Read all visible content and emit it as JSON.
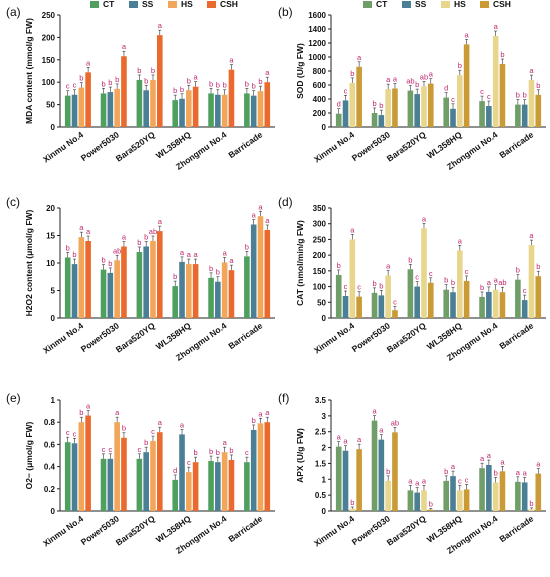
{
  "figure": {
    "groups": [
      "Xinmu No.4",
      "Power5030",
      "Bara520YQ",
      "WL358HQ",
      "Zhongmu No.4",
      "Barricade"
    ],
    "treatments": [
      "CT",
      "SS",
      "HS",
      "CSH"
    ]
  },
  "chart_data": [
    {
      "type": "bar",
      "panel": "(a)",
      "title": "",
      "legend": [
        "CT",
        "SS",
        "HS",
        "CSH"
      ],
      "legend_position": "top",
      "colors": [
        "#4fa05e",
        "#4a7f96",
        "#f2a65a",
        "#ea6a2e"
      ],
      "ylabel": "MDA content (mmol/g FW)",
      "ylim": [
        0,
        250
      ],
      "yticks": [
        0,
        50,
        100,
        150,
        200,
        250
      ],
      "categories": [
        "Xinmu No.4",
        "Power5030",
        "Bara520YQ",
        "WL358HQ",
        "Zhongmu No.4",
        "Barricade"
      ],
      "series": [
        {
          "name": "CT",
          "values": [
            70,
            75,
            105,
            60,
            75,
            75
          ],
          "letters": [
            "c",
            "b",
            "b",
            "b",
            "b",
            "b"
          ]
        },
        {
          "name": "SS",
          "values": [
            72,
            78,
            82,
            63,
            72,
            70
          ],
          "letters": [
            "c",
            "b",
            "b",
            "b",
            "b",
            "b"
          ]
        },
        {
          "name": "HS",
          "values": [
            88,
            85,
            105,
            82,
            72,
            80
          ],
          "letters": [
            "b",
            "b",
            "b",
            "b",
            "b",
            "b"
          ]
        },
        {
          "name": "CSH",
          "values": [
            122,
            158,
            205,
            90,
            128,
            100
          ],
          "letters": [
            "a",
            "a",
            "a",
            "a",
            "a",
            "a"
          ]
        }
      ]
    },
    {
      "type": "bar",
      "panel": "(b)",
      "title": "",
      "legend": [
        "CT",
        "SS",
        "HS",
        "CSH"
      ],
      "legend_position": "top",
      "colors": [
        "#6f9e68",
        "#4a7f96",
        "#e8d68c",
        "#c99a36"
      ],
      "ylabel": "SOD (U/g FW)",
      "ylim": [
        0,
        1600
      ],
      "yticks": [
        0,
        200,
        400,
        600,
        800,
        1000,
        1200,
        1400,
        1600
      ],
      "categories": [
        "Xinmu No.4",
        "Power5030",
        "Bara520YQ",
        "WL358HQ",
        "Zhongmu No.4",
        "Barricade"
      ],
      "series": [
        {
          "name": "CT",
          "values": [
            190,
            200,
            520,
            420,
            370,
            320
          ],
          "letters": [
            "d",
            "b",
            "ab",
            "d",
            "c",
            "b"
          ]
        },
        {
          "name": "SS",
          "values": [
            380,
            170,
            470,
            260,
            300,
            320
          ],
          "letters": [
            "c",
            "b",
            "b",
            "c",
            "c",
            "b"
          ]
        },
        {
          "name": "HS",
          "values": [
            630,
            540,
            580,
            740,
            1300,
            670
          ],
          "letters": [
            "b",
            "a",
            "ab",
            "b",
            "a",
            "a"
          ]
        },
        {
          "name": "CSH",
          "values": [
            860,
            550,
            620,
            1180,
            900,
            460
          ],
          "letters": [
            "a",
            "a",
            "a",
            "a",
            "b",
            "b"
          ]
        }
      ]
    },
    {
      "type": "bar",
      "panel": "(c)",
      "title": "",
      "colors": [
        "#4fa05e",
        "#4a7f96",
        "#f2a65a",
        "#ea6a2e"
      ],
      "ylabel": "H2O2 content (μmol/g FW)",
      "ylim": [
        0,
        20
      ],
      "yticks": [
        0,
        5,
        10,
        15,
        20
      ],
      "categories": [
        "Xinmu No.4",
        "Power5030",
        "Bara520YQ",
        "WL358HQ",
        "Zhongmu No.4",
        "Barricade"
      ],
      "series": [
        {
          "name": "CT",
          "values": [
            11,
            8.8,
            12,
            5.8,
            7.3,
            11.2
          ],
          "letters": [
            "b",
            "b",
            "b",
            "b",
            "b",
            "b"
          ]
        },
        {
          "name": "SS",
          "values": [
            9.8,
            8.2,
            13,
            10.2,
            6.6,
            17
          ],
          "letters": [
            "b",
            "b",
            "b",
            "a",
            "b",
            "a"
          ]
        },
        {
          "name": "HS",
          "values": [
            14.7,
            10.5,
            14,
            9.8,
            10.1,
            18.5
          ],
          "letters": [
            "a",
            "ab",
            "ab",
            "a",
            "a",
            "a"
          ]
        },
        {
          "name": "CSH",
          "values": [
            14,
            13,
            15.8,
            9.8,
            8.7,
            16
          ],
          "letters": [
            "a",
            "a",
            "a",
            "a",
            "a",
            "a"
          ]
        }
      ]
    },
    {
      "type": "bar",
      "panel": "(d)",
      "title": "",
      "colors": [
        "#6f9e68",
        "#4a7f96",
        "#e8d68c",
        "#c99a36"
      ],
      "ylabel": "CAT (nmol/min/g FW)",
      "ylim": [
        0,
        350
      ],
      "yticks": [
        0,
        50,
        100,
        150,
        200,
        250,
        300,
        350
      ],
      "categories": [
        "Xinmu No.4",
        "Power5030",
        "Bara520YQ",
        "WL358HQ",
        "Zhongmu No.4",
        "Barricade"
      ],
      "series": [
        {
          "name": "CT",
          "values": [
            137,
            80,
            155,
            90,
            67,
            122
          ],
          "letters": [
            "b",
            "b",
            "b",
            "b",
            "b",
            "b"
          ]
        },
        {
          "name": "SS",
          "values": [
            70,
            72,
            100,
            82,
            83,
            57
          ],
          "letters": [
            "c",
            "b",
            "c",
            "b",
            "a",
            "c"
          ]
        },
        {
          "name": "HS",
          "values": [
            250,
            135,
            285,
            215,
            90,
            232
          ],
          "letters": [
            "a",
            "a",
            "a",
            "a",
            "a",
            "a"
          ]
        },
        {
          "name": "CSH",
          "values": [
            68,
            25,
            112,
            118,
            82,
            133
          ],
          "letters": [
            "c",
            "c",
            "c",
            "c",
            "ab",
            "b"
          ]
        }
      ]
    },
    {
      "type": "bar",
      "panel": "(e)",
      "title": "",
      "colors": [
        "#4fa05e",
        "#4a7f96",
        "#f2a65a",
        "#ea6a2e"
      ],
      "ylabel": "O2− (μmol/g FW)",
      "ylim": [
        0,
        1.0
      ],
      "yticks": [
        0,
        0.2,
        0.4,
        0.6,
        0.8,
        1.0
      ],
      "categories": [
        "Xinmu No.4",
        "Power5030",
        "Bara520YQ",
        "WL358HQ",
        "Zhongmu No.4",
        "Barricade"
      ],
      "series": [
        {
          "name": "CT",
          "values": [
            0.62,
            0.47,
            0.47,
            0.28,
            0.45,
            0.44
          ],
          "letters": [
            "c",
            "c",
            "c",
            "d",
            "b",
            "c"
          ]
        },
        {
          "name": "SS",
          "values": [
            0.61,
            0.47,
            0.53,
            0.69,
            0.44,
            0.73
          ],
          "letters": [
            "c",
            "c",
            "b",
            "a",
            "b",
            "b"
          ]
        },
        {
          "name": "HS",
          "values": [
            0.8,
            0.8,
            0.63,
            0.35,
            0.53,
            0.79
          ],
          "letters": [
            "b",
            "a",
            "c",
            "c",
            "a",
            "a"
          ]
        },
        {
          "name": "CSH",
          "values": [
            0.86,
            0.66,
            0.71,
            0.44,
            0.46,
            0.8
          ],
          "letters": [
            "a",
            "b",
            "a",
            "b",
            "b",
            "a"
          ]
        }
      ]
    },
    {
      "type": "bar",
      "panel": "(f)",
      "title": "",
      "colors": [
        "#6f9e68",
        "#4a7f96",
        "#e8d68c",
        "#c99a36"
      ],
      "ylabel": "APX (U/g FW)",
      "ylim": [
        0,
        3.5
      ],
      "yticks": [
        0,
        0.5,
        1.0,
        1.5,
        2.0,
        2.5,
        3.0,
        3.5
      ],
      "categories": [
        "Xinmu No.4",
        "Power5030",
        "Bara520YQ",
        "WL358HQ",
        "Zhongmu No.4",
        "Barricade"
      ],
      "series": [
        {
          "name": "CT",
          "values": [
            2.03,
            2.85,
            0.65,
            0.95,
            1.35,
            0.92
          ],
          "letters": [
            "a",
            "a",
            "a",
            "b",
            "a",
            "a"
          ]
        },
        {
          "name": "SS",
          "values": [
            1.9,
            2.25,
            0.58,
            1.1,
            1.45,
            0.9
          ],
          "letters": [
            "a",
            "a",
            "a",
            "a",
            "a",
            "a"
          ]
        },
        {
          "name": "HS",
          "values": [
            0.07,
            0.95,
            0.65,
            0.65,
            0.9,
            0.05
          ],
          "letters": [
            "b",
            "b",
            "a",
            "c",
            "b",
            "b"
          ]
        },
        {
          "name": "CSH",
          "values": [
            1.95,
            2.48,
            0.04,
            0.68,
            1.25,
            1.18
          ],
          "letters": [
            "a",
            "ab",
            "b",
            "c",
            "a",
            "a"
          ]
        }
      ]
    }
  ]
}
